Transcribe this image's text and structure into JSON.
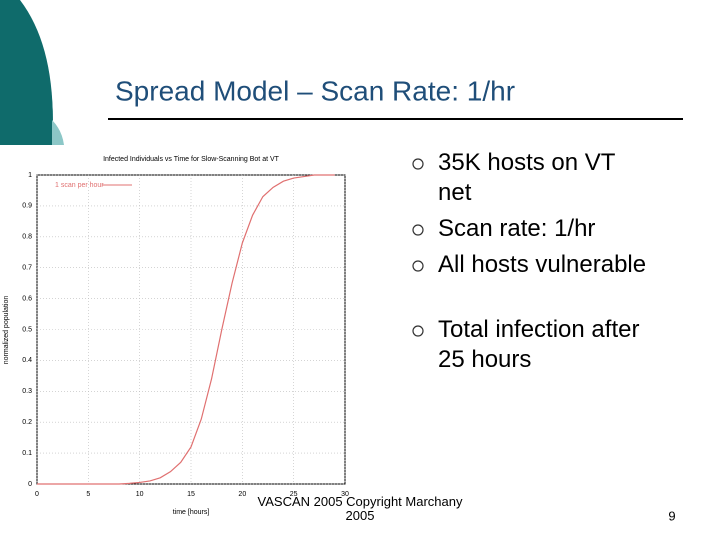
{
  "slide": {
    "title": "Spread Model – Scan Rate: 1/hr",
    "bullets": [
      "35K hosts on VT net",
      "Scan rate: 1/hr",
      "All hosts vulnerable",
      "Total infection after 25 hours"
    ],
    "footer": "VASCAN 2005 Copyright Marchany 2005",
    "page_number": "9"
  },
  "chart_data": {
    "type": "line",
    "title": "Infected Individuals vs Time for Slow-Scanning Bot at VT",
    "x_label": "time [hours]",
    "y_label": "normalized population",
    "x": [
      0,
      1,
      2,
      3,
      4,
      5,
      6,
      7,
      8,
      9,
      10,
      11,
      12,
      13,
      14,
      15,
      16,
      17,
      18,
      19,
      20,
      21,
      22,
      23,
      24,
      25,
      26,
      27,
      28,
      29
    ],
    "series": [
      {
        "name": "1 scan per hour",
        "color": "#e07070",
        "values": [
          0,
          0,
          0,
          0,
          0,
          0,
          0,
          0,
          0,
          0.002,
          0.005,
          0.01,
          0.02,
          0.04,
          0.07,
          0.12,
          0.21,
          0.34,
          0.5,
          0.65,
          0.78,
          0.87,
          0.93,
          0.96,
          0.98,
          0.99,
          0.995,
          1,
          1,
          1
        ]
      }
    ],
    "xlim": [
      0,
      30
    ],
    "xticks": [
      0,
      5,
      10,
      15,
      20,
      25,
      30
    ],
    "ylim": [
      0,
      1
    ],
    "yticks": [
      0,
      0.1,
      0.2,
      0.3,
      0.4,
      0.5,
      0.6,
      0.7,
      0.8,
      0.9,
      1
    ],
    "grid": true,
    "legend": "top-left"
  }
}
